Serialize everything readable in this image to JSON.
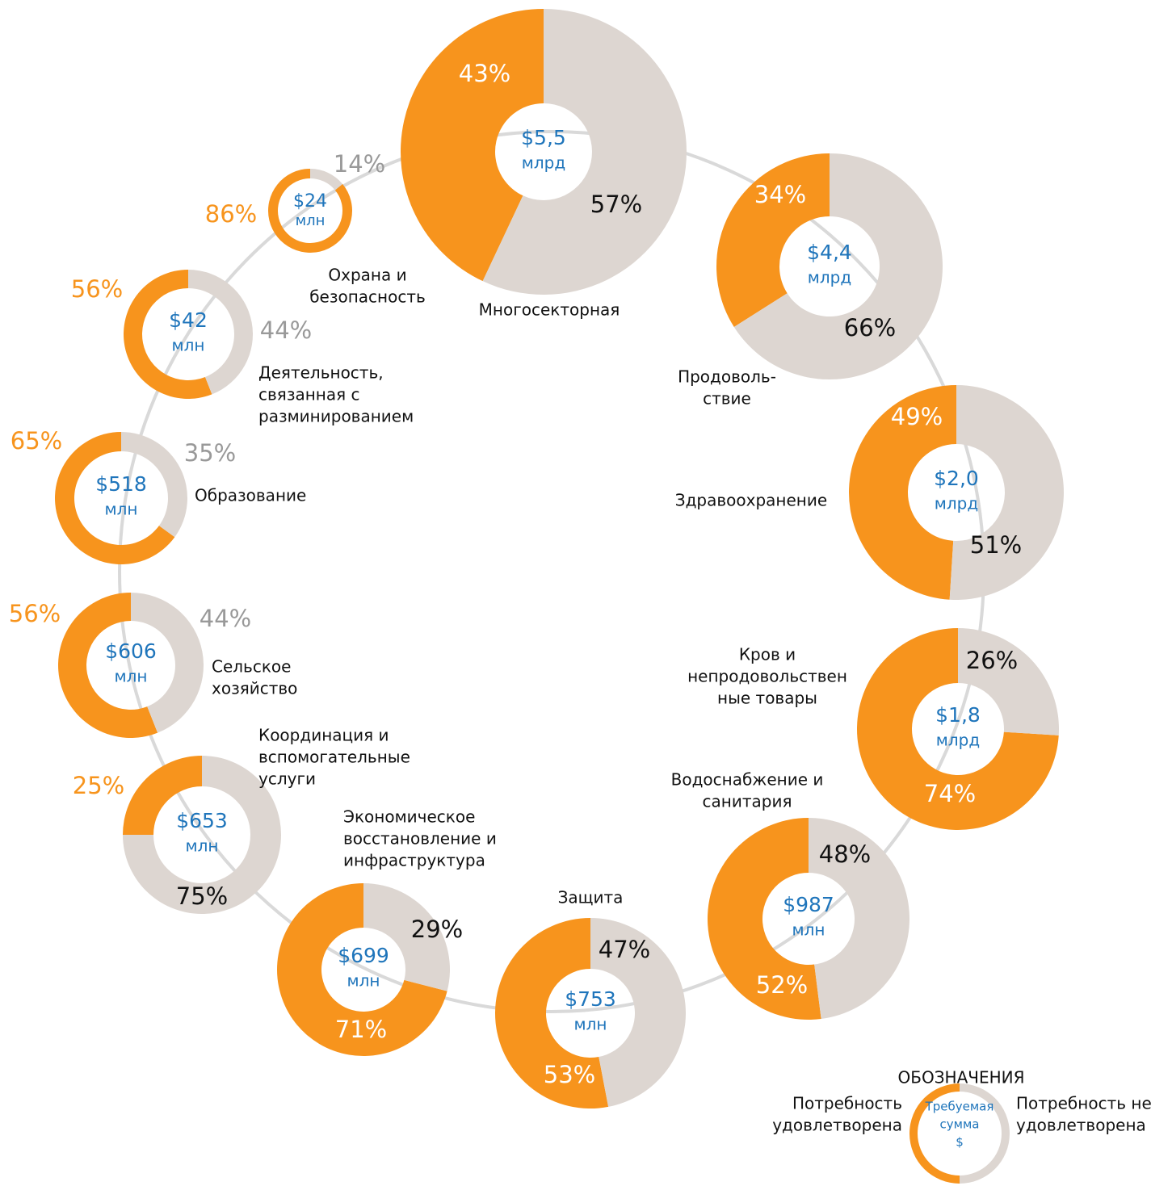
{
  "chart_data": {
    "type": "donut-ring",
    "colors": {
      "met": "#f7941d",
      "unmet": "#ddd6d1"
    },
    "sectors": [
      {
        "name": [
          "Многосекторная"
        ],
        "amount": "$5,5",
        "unit": "млрд",
        "values": [
          43,
          57
        ],
        "value_labels": [
          "43%",
          "57%"
        ]
      },
      {
        "name": [
          "Продоволь-",
          "ствие"
        ],
        "amount": "$4,4",
        "unit": "млрд",
        "values": [
          34,
          66
        ],
        "value_labels": [
          "34%",
          "66%"
        ]
      },
      {
        "name": [
          "Здравоохранение"
        ],
        "amount": "$2,0",
        "unit": "млрд",
        "values": [
          49,
          51
        ],
        "value_labels": [
          "49%",
          "51%"
        ]
      },
      {
        "name": [
          "Кров и",
          "непродовольствен",
          "ные товары"
        ],
        "amount": "$1,8",
        "unit": "млрд",
        "values": [
          74,
          26
        ],
        "value_labels": [
          "74%",
          "26%"
        ]
      },
      {
        "name": [
          "Водоснабжение и",
          "санитария"
        ],
        "amount": "$987",
        "unit": "млн",
        "values": [
          52,
          48
        ],
        "value_labels": [
          "52%",
          "48%"
        ]
      },
      {
        "name": [
          "Защита"
        ],
        "amount": "$753",
        "unit": "млн",
        "values": [
          53,
          47
        ],
        "value_labels": [
          "53%",
          "47%"
        ]
      },
      {
        "name": [
          "Экономическое",
          "восстановление и",
          "инфраструктура"
        ],
        "amount": "$699",
        "unit": "млн",
        "values": [
          71,
          29
        ],
        "value_labels": [
          "71%",
          "29%"
        ]
      },
      {
        "name": [
          "Координация и",
          "вспомогательные",
          "услуги"
        ],
        "amount": "$653",
        "unit": "млн",
        "values": [
          25,
          75
        ],
        "value_labels": [
          "25%",
          "75%"
        ]
      },
      {
        "name": [
          "Сельское",
          "хозяйство"
        ],
        "amount": "$606",
        "unit": "млн",
        "values": [
          56,
          44
        ],
        "value_labels": [
          "56%",
          "44%"
        ]
      },
      {
        "name": [
          "Образование"
        ],
        "amount": "$518",
        "unit": "млн",
        "values": [
          65,
          35
        ],
        "value_labels": [
          "65%",
          "35%"
        ]
      },
      {
        "name": [
          "Деятельность,",
          "связанная с",
          "разминированием"
        ],
        "amount": "$42",
        "unit": "млн",
        "values": [
          56,
          44
        ],
        "value_labels": [
          "56%",
          "44%"
        ]
      },
      {
        "name": [
          "Охрана и",
          "безопасность"
        ],
        "amount": "$24",
        "unit": "млн",
        "values": [
          86,
          14
        ],
        "value_labels": [
          "86%",
          "14%"
        ]
      }
    ],
    "legend": {
      "title": "ОБОЗНАЧЕНИЯ",
      "met": [
        "Потребность",
        "удовлетворена"
      ],
      "unmet": [
        "Потребность не",
        "удовлетворена"
      ],
      "center": [
        "Требуемая",
        "сумма",
        "$"
      ]
    }
  }
}
